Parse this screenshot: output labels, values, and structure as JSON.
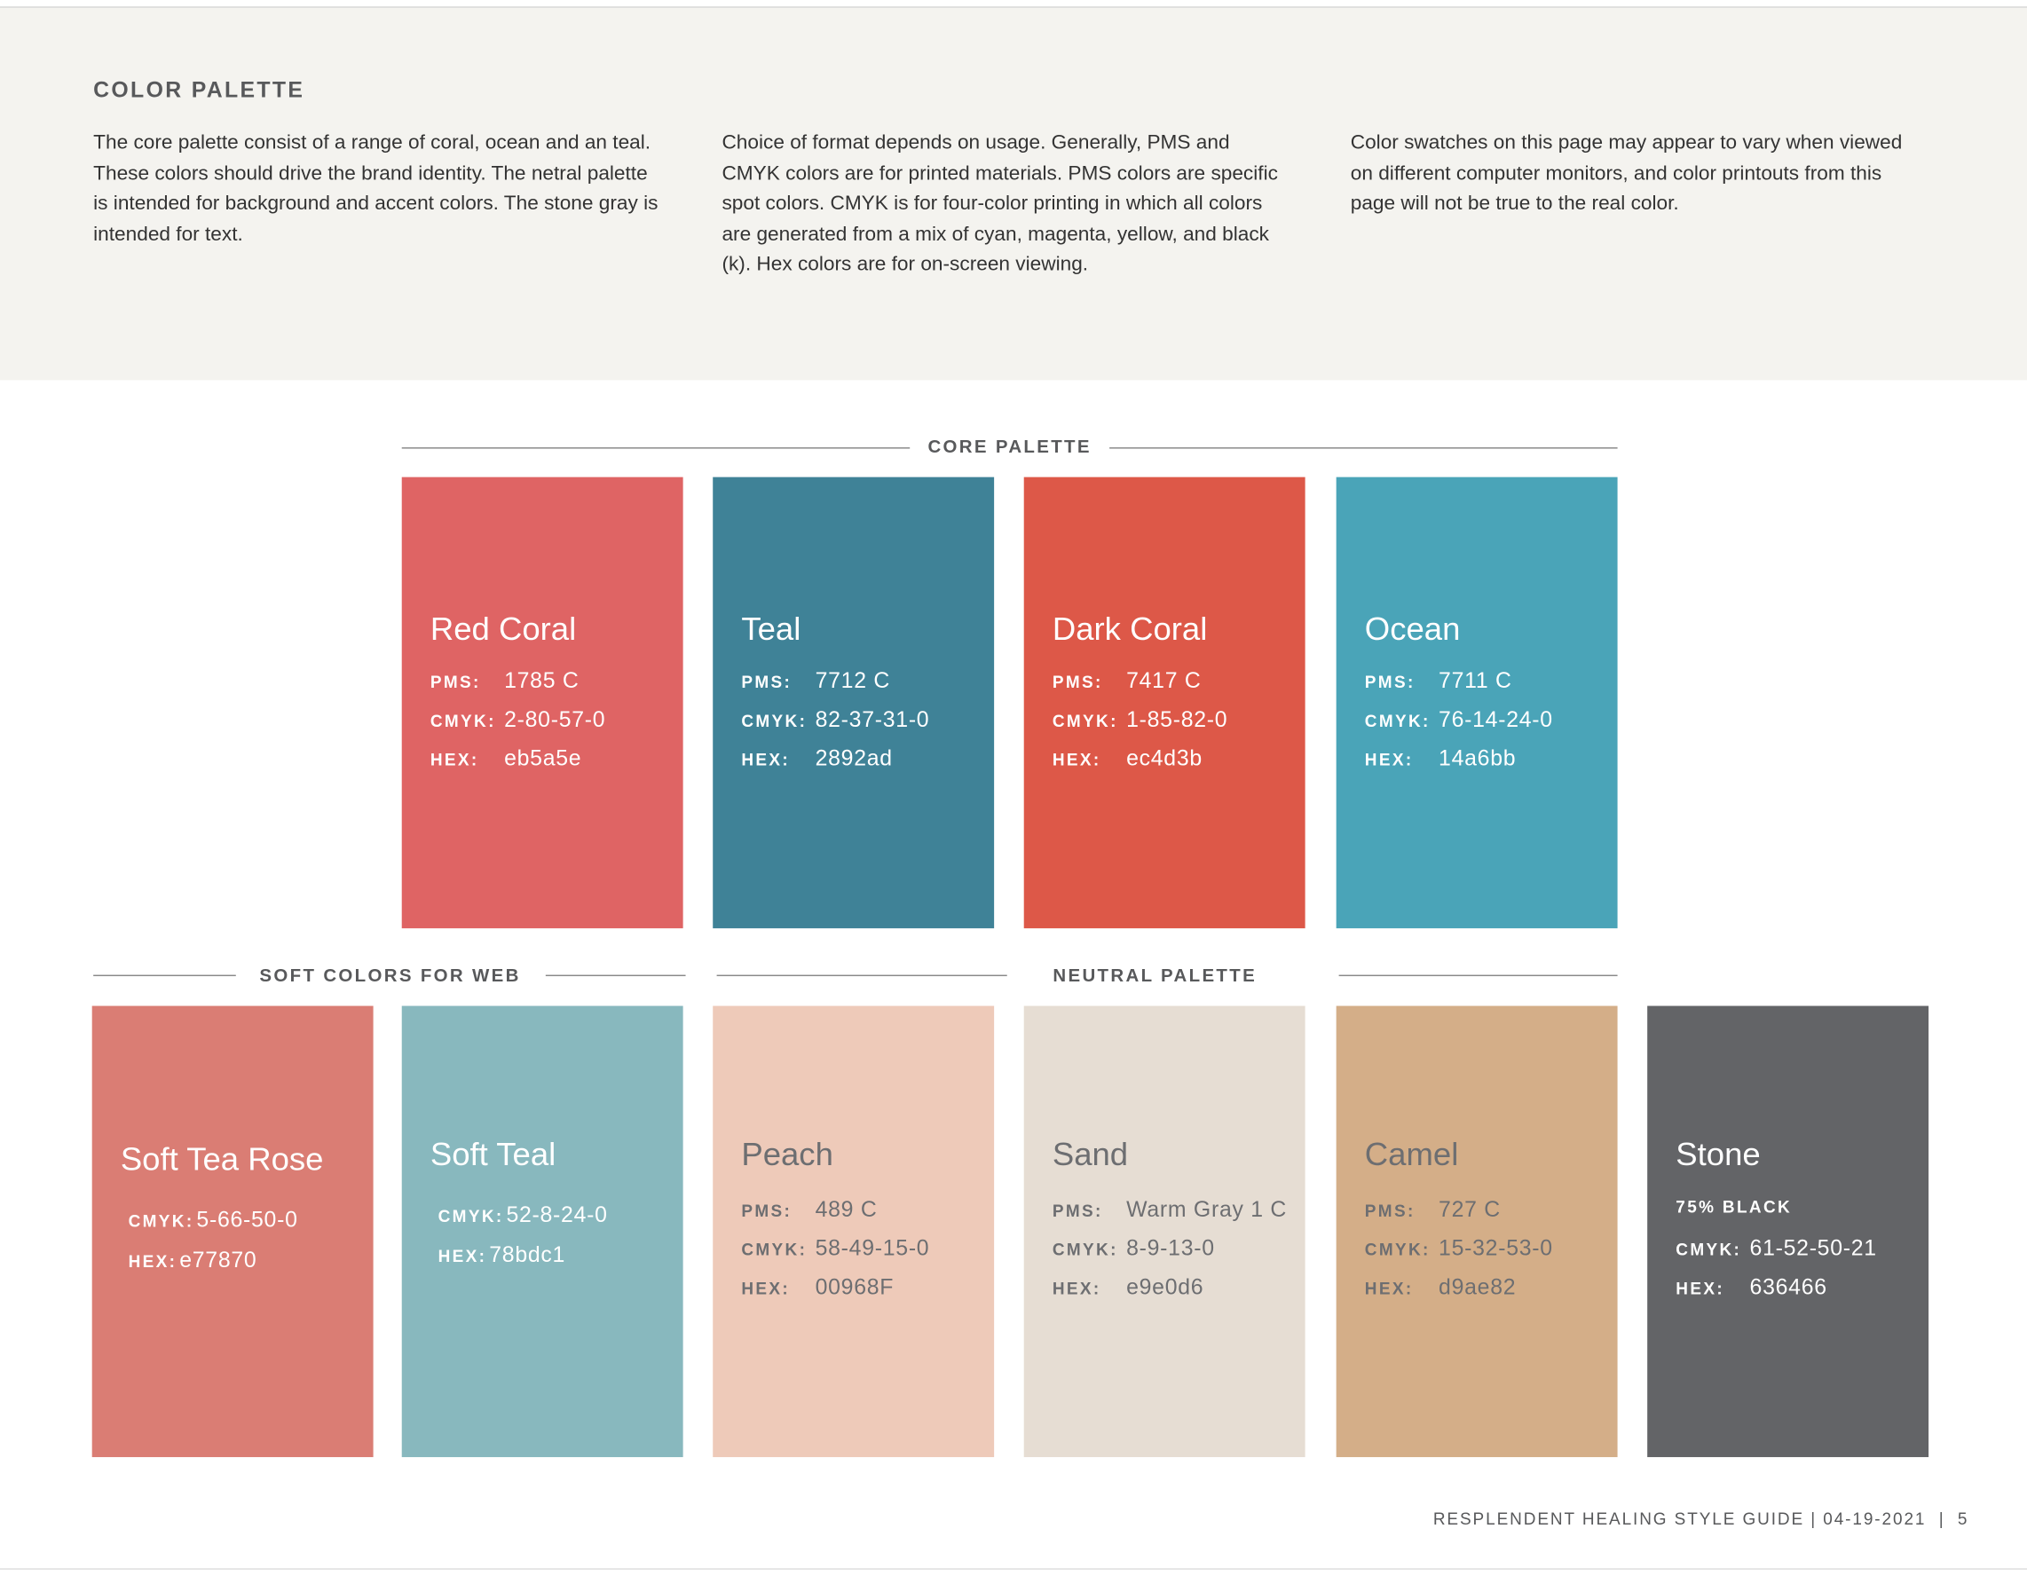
{
  "header": {
    "title": "COLOR PALETTE",
    "paragraphs": [
      "The core palette consist of a range of coral, ocean and an teal. These colors should drive the brand identity. The netral palette is intended for background and accent colors. The stone gray is intended for text.",
      "Choice of format depends on usage. Generally, PMS and CMYK colors are for printed materials. PMS colors are specific spot colors. CMYK is for four-color printing in which all colors are generated from a mix of cyan, magenta, yellow, and black (k). Hex colors are for on-screen viewing.",
      "Color swatches on this page may appear to vary when viewed on different computer monitors, and color printouts from this page will not be true to the real color."
    ]
  },
  "sections": [
    {
      "label": "CORE PALETTE"
    },
    {
      "label": "SOFT COLORS FOR WEB"
    },
    {
      "label": "NEUTRAL PALETTE"
    }
  ],
  "swatches": [
    {
      "name": "Red Coral",
      "color": "#df6464",
      "fields": [
        {
          "label": "PMS:",
          "value": "1785 C"
        },
        {
          "label": "CMYK:",
          "value": "2-80-57-0"
        },
        {
          "label": "HEX:",
          "value": "eb5a5e"
        }
      ]
    },
    {
      "name": "Teal",
      "color": "#3f8297",
      "fields": [
        {
          "label": "PMS:",
          "value": "7712 C"
        },
        {
          "label": "CMYK:",
          "value": "82-37-31-0"
        },
        {
          "label": "HEX:",
          "value": "2892ad"
        }
      ]
    },
    {
      "name": "Dark Coral",
      "color": "#dd5848",
      "fields": [
        {
          "label": "PMS:",
          "value": "7417 C"
        },
        {
          "label": "CMYK:",
          "value": "1-85-82-0"
        },
        {
          "label": "HEX:",
          "value": "ec4d3b"
        }
      ]
    },
    {
      "name": "Ocean",
      "color": "#4aa4b8",
      "fields": [
        {
          "label": "PMS:",
          "value": "7711 C"
        },
        {
          "label": "CMYK:",
          "value": "76-14-24-0"
        },
        {
          "label": "HEX:",
          "value": "14a6bb"
        }
      ]
    },
    {
      "name": "Soft Tea Rose",
      "color": "#da7d74",
      "fields": [
        {
          "label": "CMYK:",
          "value": "5-66-50-0"
        },
        {
          "label": "HEX:",
          "value": "e77870"
        }
      ]
    },
    {
      "name": "Soft Teal",
      "color": "#88b8be",
      "fields": [
        {
          "label": "CMYK:",
          "value": "52-8-24-0"
        },
        {
          "label": "HEX:",
          "value": "78bdc1"
        }
      ]
    },
    {
      "name": "Peach",
      "color": "#eecab9",
      "fields": [
        {
          "label": "PMS:",
          "value": "489 C"
        },
        {
          "label": "CMYK:",
          "value": "58-49-15-0"
        },
        {
          "label": "HEX:",
          "value": "00968F"
        }
      ]
    },
    {
      "name": "Sand",
      "color": "#e6ddd3",
      "fields": [
        {
          "label": "PMS:",
          "value": "Warm Gray 1 C"
        },
        {
          "label": "CMYK:",
          "value": "8-9-13-0"
        },
        {
          "label": "HEX:",
          "value": "e9e0d6"
        }
      ]
    },
    {
      "name": "Camel",
      "color": "#d4ae88",
      "fields": [
        {
          "label": "PMS:",
          "value": "727 C"
        },
        {
          "label": "CMYK:",
          "value": "15-32-53-0"
        },
        {
          "label": "HEX:",
          "value": "d9ae82"
        }
      ]
    },
    {
      "name": "Stone",
      "color": "#636467",
      "fields": [
        {
          "label": "75% BLACK"
        },
        {
          "label": "CMYK:",
          "value": "61-52-50-21"
        },
        {
          "label": "HEX:",
          "value": "636466"
        }
      ]
    }
  ],
  "footer": "RESPLENDENT HEALING STYLE GUIDE | 04-19-2021  |  5"
}
